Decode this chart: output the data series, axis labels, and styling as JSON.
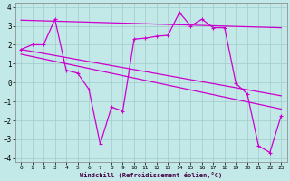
{
  "xlabel": "Windchill (Refroidissement éolien,°C)",
  "bg_color": "#c2e8e8",
  "grid_color": "#a0cccc",
  "line_color": "#cc00cc",
  "xlim": [
    -0.5,
    23.5
  ],
  "ylim": [
    -4.2,
    4.2
  ],
  "xticks": [
    0,
    1,
    2,
    3,
    4,
    5,
    6,
    7,
    8,
    9,
    10,
    11,
    12,
    13,
    14,
    15,
    16,
    17,
    18,
    19,
    20,
    21,
    22,
    23
  ],
  "yticks": [
    -4,
    -3,
    -2,
    -1,
    0,
    1,
    2,
    3,
    4
  ],
  "series1_x": [
    0,
    1,
    2,
    3,
    4,
    5,
    6,
    7,
    8,
    9,
    10,
    11,
    12,
    13,
    14,
    15,
    16,
    17,
    18,
    19,
    20,
    21,
    22,
    23
  ],
  "series1_y": [
    1.75,
    2.0,
    2.0,
    3.35,
    0.65,
    0.5,
    -0.35,
    -3.25,
    -1.3,
    -1.5,
    2.3,
    2.35,
    2.45,
    2.5,
    3.7,
    3.0,
    3.35,
    2.9,
    2.9,
    -0.05,
    -0.6,
    -3.35,
    -3.7,
    -1.75
  ],
  "series2_x": [
    0,
    23
  ],
  "series2_y": [
    3.3,
    2.9
  ],
  "series3_x": [
    0,
    23
  ],
  "series3_y": [
    1.75,
    -0.7
  ],
  "series4_x": [
    0,
    23
  ],
  "series4_y": [
    1.5,
    -1.4
  ]
}
